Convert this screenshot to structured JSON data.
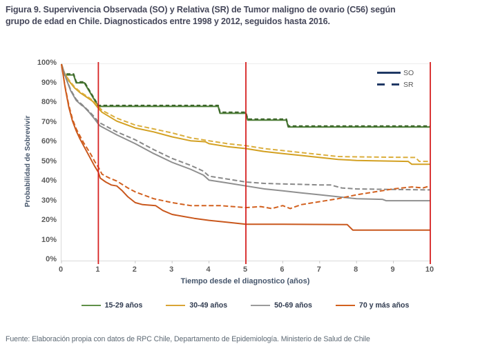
{
  "title": {
    "line1": "Figura 9. Supervivencia Observada (SO) y Relativa (SR) de Tumor maligno de ovario (C56) según",
    "line2": "grupo de edad en Chile. Diagnosticados entre 1998 y 2012, seguidos hasta 2016."
  },
  "footer": {
    "text": "Fuente: Elaboración propia con datos de RPC Chile, Departamento de Epidemiología. Ministerio de Salud de Chile"
  },
  "chart_data": {
    "type": "line",
    "subtype": "survival-curves",
    "xlabel": "Tiempo desde el diagnostico (años)",
    "ylabel": "Probabilidad de Sobrevivir",
    "xlim": [
      0,
      10
    ],
    "ylim": [
      0,
      100
    ],
    "grid": "off",
    "x_ticks": [
      "0",
      "1",
      "2",
      "3",
      "4",
      "5",
      "6",
      "7",
      "8",
      "9",
      "10"
    ],
    "y_ticks": [
      "100%",
      "90%",
      "80%",
      "70%",
      "60%",
      "50%",
      "40%",
      "30%",
      "20%",
      "10%",
      "0%"
    ],
    "reference_lines_x": [
      1,
      5,
      10
    ],
    "reference_line_color": "#D62020",
    "line_type_legend": [
      {
        "label": "SO",
        "style": "solid",
        "color": "#1F3864"
      },
      {
        "label": "SR",
        "style": "dashed",
        "color": "#1F3864"
      }
    ],
    "legend": [
      {
        "label": "15-29 años",
        "color": "#5F9048"
      },
      {
        "label": "30-49 años",
        "color": "#D9A435"
      },
      {
        "label": "50-69 años",
        "color": "#9A9A9A"
      },
      {
        "label": "70 y más años",
        "color": "#D2601E"
      }
    ],
    "legend_position": "bottom",
    "series": [
      {
        "id": "15-29-so",
        "name": "15-29 años SO",
        "style": "solid",
        "color": "#4E7E38",
        "width": 2.2,
        "points": [
          [
            0,
            100
          ],
          [
            0.08,
            94.5
          ],
          [
            0.33,
            94.5
          ],
          [
            0.4,
            90.5
          ],
          [
            0.62,
            90.5
          ],
          [
            1,
            78.5
          ],
          [
            4.25,
            78.5
          ],
          [
            4.3,
            75
          ],
          [
            5,
            75
          ],
          [
            5.05,
            71.5
          ],
          [
            6.1,
            71.5
          ],
          [
            6.15,
            68
          ],
          [
            10,
            68
          ]
        ]
      },
      {
        "id": "15-29-sr",
        "name": "15-29 años SR",
        "style": "dashed",
        "color": "#3A6428",
        "width": 2,
        "dash": "5.5 3.5",
        "points": [
          [
            0,
            100
          ],
          [
            0.08,
            95
          ],
          [
            0.33,
            95
          ],
          [
            0.4,
            91
          ],
          [
            0.62,
            91
          ],
          [
            1,
            79
          ],
          [
            4.25,
            79
          ],
          [
            4.3,
            75.5
          ],
          [
            5,
            75.5
          ],
          [
            5.05,
            72
          ],
          [
            6.1,
            72
          ],
          [
            6.15,
            68.5
          ],
          [
            10,
            68.5
          ]
        ]
      },
      {
        "id": "30-49-so",
        "name": "30-49 años SO",
        "style": "solid",
        "color": "#D3A021",
        "width": 2,
        "points": [
          [
            0,
            100
          ],
          [
            0.08,
            95.5
          ],
          [
            0.2,
            91.5
          ],
          [
            0.35,
            88
          ],
          [
            0.5,
            85.5
          ],
          [
            0.7,
            83
          ],
          [
            0.85,
            81
          ],
          [
            1,
            77.5
          ],
          [
            1.1,
            75.5
          ],
          [
            1.5,
            71
          ],
          [
            2,
            67.5
          ],
          [
            2.5,
            65.5
          ],
          [
            3,
            63
          ],
          [
            3.5,
            61
          ],
          [
            3.9,
            60.5
          ],
          [
            4,
            59.5
          ],
          [
            4.5,
            58
          ],
          [
            5,
            57
          ],
          [
            5.5,
            55.5
          ],
          [
            6,
            54.5
          ],
          [
            6.5,
            53.5
          ],
          [
            7,
            52.5
          ],
          [
            7.5,
            51.5
          ],
          [
            8,
            51
          ],
          [
            8.5,
            50.8
          ],
          [
            9.4,
            50.5
          ],
          [
            9.5,
            49
          ],
          [
            10,
            49
          ]
        ]
      },
      {
        "id": "30-49-sr",
        "name": "30-49 años SR",
        "style": "dashed",
        "color": "#DBAE3C",
        "width": 2,
        "dash": "7 3.5",
        "points": [
          [
            0,
            100
          ],
          [
            0.08,
            95.5
          ],
          [
            0.2,
            92
          ],
          [
            0.35,
            88.5
          ],
          [
            0.5,
            86
          ],
          [
            0.7,
            83.5
          ],
          [
            0.85,
            81.5
          ],
          [
            1,
            78.5
          ],
          [
            1.1,
            76.5
          ],
          [
            1.5,
            72.5
          ],
          [
            2,
            69
          ],
          [
            2.5,
            67
          ],
          [
            3,
            65
          ],
          [
            3.5,
            62.5
          ],
          [
            4,
            61
          ],
          [
            4.5,
            59.5
          ],
          [
            5,
            58.5
          ],
          [
            5.5,
            57
          ],
          [
            6,
            56
          ],
          [
            6.5,
            55
          ],
          [
            7,
            54
          ],
          [
            7.5,
            53
          ],
          [
            8,
            52.8
          ],
          [
            9.6,
            52.5
          ],
          [
            9.7,
            50.5
          ],
          [
            10,
            50.5
          ]
        ]
      },
      {
        "id": "50-69-so",
        "name": "50-69 años SO",
        "style": "solid",
        "color": "#8F8F8F",
        "width": 2,
        "points": [
          [
            0,
            100
          ],
          [
            0.1,
            94
          ],
          [
            0.25,
            86.5
          ],
          [
            0.4,
            81.5
          ],
          [
            0.55,
            79
          ],
          [
            0.6,
            78.5
          ],
          [
            0.75,
            75.5
          ],
          [
            0.9,
            72
          ],
          [
            1,
            69.5
          ],
          [
            1.05,
            68.5
          ],
          [
            1.5,
            64
          ],
          [
            2,
            59.5
          ],
          [
            2.5,
            54.5
          ],
          [
            3,
            50
          ],
          [
            3.5,
            46.5
          ],
          [
            3.85,
            43.5
          ],
          [
            4,
            41
          ],
          [
            4.5,
            39.5
          ],
          [
            5,
            38
          ],
          [
            5.5,
            36.5
          ],
          [
            6,
            35.5
          ],
          [
            6.5,
            34.5
          ],
          [
            7,
            33.5
          ],
          [
            7.5,
            32.5
          ],
          [
            8,
            31.5
          ],
          [
            8.7,
            31.2
          ],
          [
            8.8,
            30.5
          ],
          [
            10,
            30.5
          ]
        ]
      },
      {
        "id": "50-69-sr",
        "name": "50-69 años SR",
        "style": "dashed",
        "color": "#888888",
        "width": 2,
        "dash": "7 3.5",
        "points": [
          [
            0,
            100
          ],
          [
            0.1,
            94
          ],
          [
            0.25,
            87
          ],
          [
            0.4,
            82
          ],
          [
            0.55,
            79.5
          ],
          [
            0.75,
            76
          ],
          [
            0.9,
            73
          ],
          [
            1,
            70.5
          ],
          [
            1.5,
            65.5
          ],
          [
            2,
            61.5
          ],
          [
            2.5,
            56.5
          ],
          [
            3,
            52
          ],
          [
            3.5,
            48.5
          ],
          [
            3.85,
            45.5
          ],
          [
            4,
            43
          ],
          [
            4.5,
            41.5
          ],
          [
            5,
            40
          ],
          [
            5.5,
            39.3
          ],
          [
            6,
            39
          ],
          [
            6.5,
            38.8
          ],
          [
            7,
            38.5
          ],
          [
            7.3,
            38.5
          ],
          [
            7.6,
            37
          ],
          [
            8,
            36.5
          ],
          [
            9,
            36.2
          ],
          [
            10,
            36
          ]
        ]
      },
      {
        "id": "70-mas-so",
        "name": "70 y más años SO",
        "style": "solid",
        "color": "#C9571C",
        "width": 2,
        "points": [
          [
            0,
            100
          ],
          [
            0.1,
            88
          ],
          [
            0.2,
            78
          ],
          [
            0.3,
            71
          ],
          [
            0.4,
            66
          ],
          [
            0.5,
            62
          ],
          [
            0.6,
            58.5
          ],
          [
            0.7,
            55
          ],
          [
            0.8,
            51.5
          ],
          [
            0.9,
            48
          ],
          [
            1,
            45
          ],
          [
            1.05,
            42
          ],
          [
            1.2,
            40
          ],
          [
            1.35,
            38.5
          ],
          [
            1.5,
            38
          ],
          [
            1.65,
            35.5
          ],
          [
            1.8,
            32.5
          ],
          [
            2,
            29.5
          ],
          [
            2.2,
            28.5
          ],
          [
            2.55,
            28
          ],
          [
            2.75,
            25.5
          ],
          [
            3,
            23.5
          ],
          [
            3.3,
            22.5
          ],
          [
            3.6,
            21.5
          ],
          [
            4,
            20.5
          ],
          [
            4.5,
            19.5
          ],
          [
            5,
            18.5
          ],
          [
            6,
            18.5
          ],
          [
            7.75,
            18.3
          ],
          [
            7.9,
            15.5
          ],
          [
            10,
            15.5
          ]
        ]
      },
      {
        "id": "70-mas-sr",
        "name": "70 y más años SR",
        "style": "dashed",
        "color": "#D2601E",
        "width": 2,
        "dash": "7 3.5",
        "points": [
          [
            0,
            100
          ],
          [
            0.1,
            88.5
          ],
          [
            0.2,
            79
          ],
          [
            0.3,
            72
          ],
          [
            0.4,
            67
          ],
          [
            0.5,
            63.5
          ],
          [
            0.6,
            60
          ],
          [
            0.7,
            57
          ],
          [
            0.8,
            54
          ],
          [
            0.9,
            50.5
          ],
          [
            1,
            47.5
          ],
          [
            1.1,
            44
          ],
          [
            1.3,
            42
          ],
          [
            1.5,
            40.5
          ],
          [
            1.8,
            37
          ],
          [
            2,
            35
          ],
          [
            2.5,
            31.5
          ],
          [
            3,
            29.5
          ],
          [
            3.5,
            28
          ],
          [
            4.3,
            28
          ],
          [
            5,
            27
          ],
          [
            5.4,
            27.5
          ],
          [
            5.7,
            26.5
          ],
          [
            6,
            28
          ],
          [
            6.2,
            26.5
          ],
          [
            6.5,
            28.5
          ],
          [
            7,
            30
          ],
          [
            7.5,
            31.5
          ],
          [
            8,
            33.5
          ],
          [
            8.5,
            35
          ],
          [
            9,
            36.5
          ],
          [
            9.5,
            37.5
          ],
          [
            9.8,
            37
          ],
          [
            10,
            38
          ]
        ]
      }
    ]
  }
}
